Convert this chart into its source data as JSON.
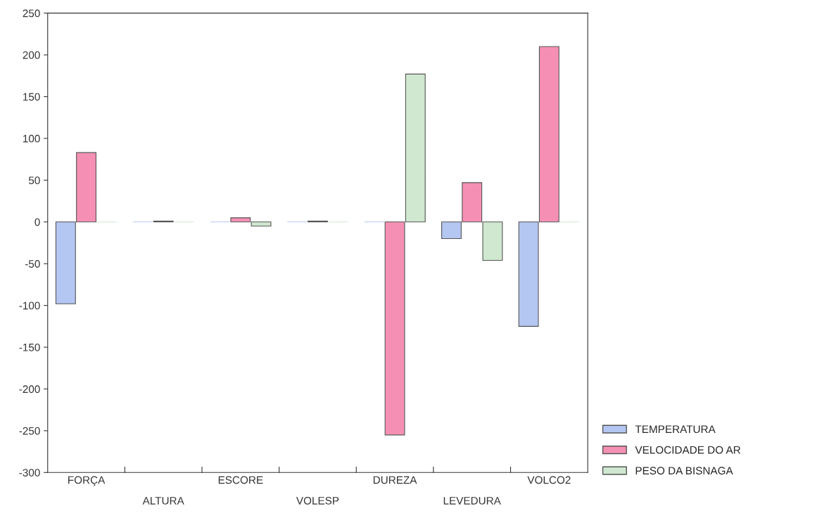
{
  "chart_data": {
    "type": "bar",
    "categories": [
      "FORÇA",
      "ALTURA",
      "ESCORE",
      "VOLESP",
      "DUREZA",
      "LEVEDURA",
      "VOLCO2"
    ],
    "series": [
      {
        "name": "TEMPERATURA",
        "color": "#b4c6f2",
        "values": [
          -98,
          0,
          0,
          0,
          0,
          -20,
          -125
        ]
      },
      {
        "name": "VELOCIDADE DO AR",
        "color": "#f590b4",
        "values": [
          83,
          1,
          5,
          1,
          -255,
          47,
          210
        ]
      },
      {
        "name": "PESO DA BISNAGA",
        "color": "#cfe8cf",
        "values": [
          0,
          0,
          -5,
          0,
          177,
          -46,
          0
        ]
      }
    ],
    "ylim": [
      -300,
      250
    ],
    "yticks": [
      -300,
      -250,
      -200,
      -150,
      -100,
      -50,
      0,
      50,
      100,
      150,
      200,
      250
    ],
    "grid": false,
    "legend": "bottom right"
  }
}
